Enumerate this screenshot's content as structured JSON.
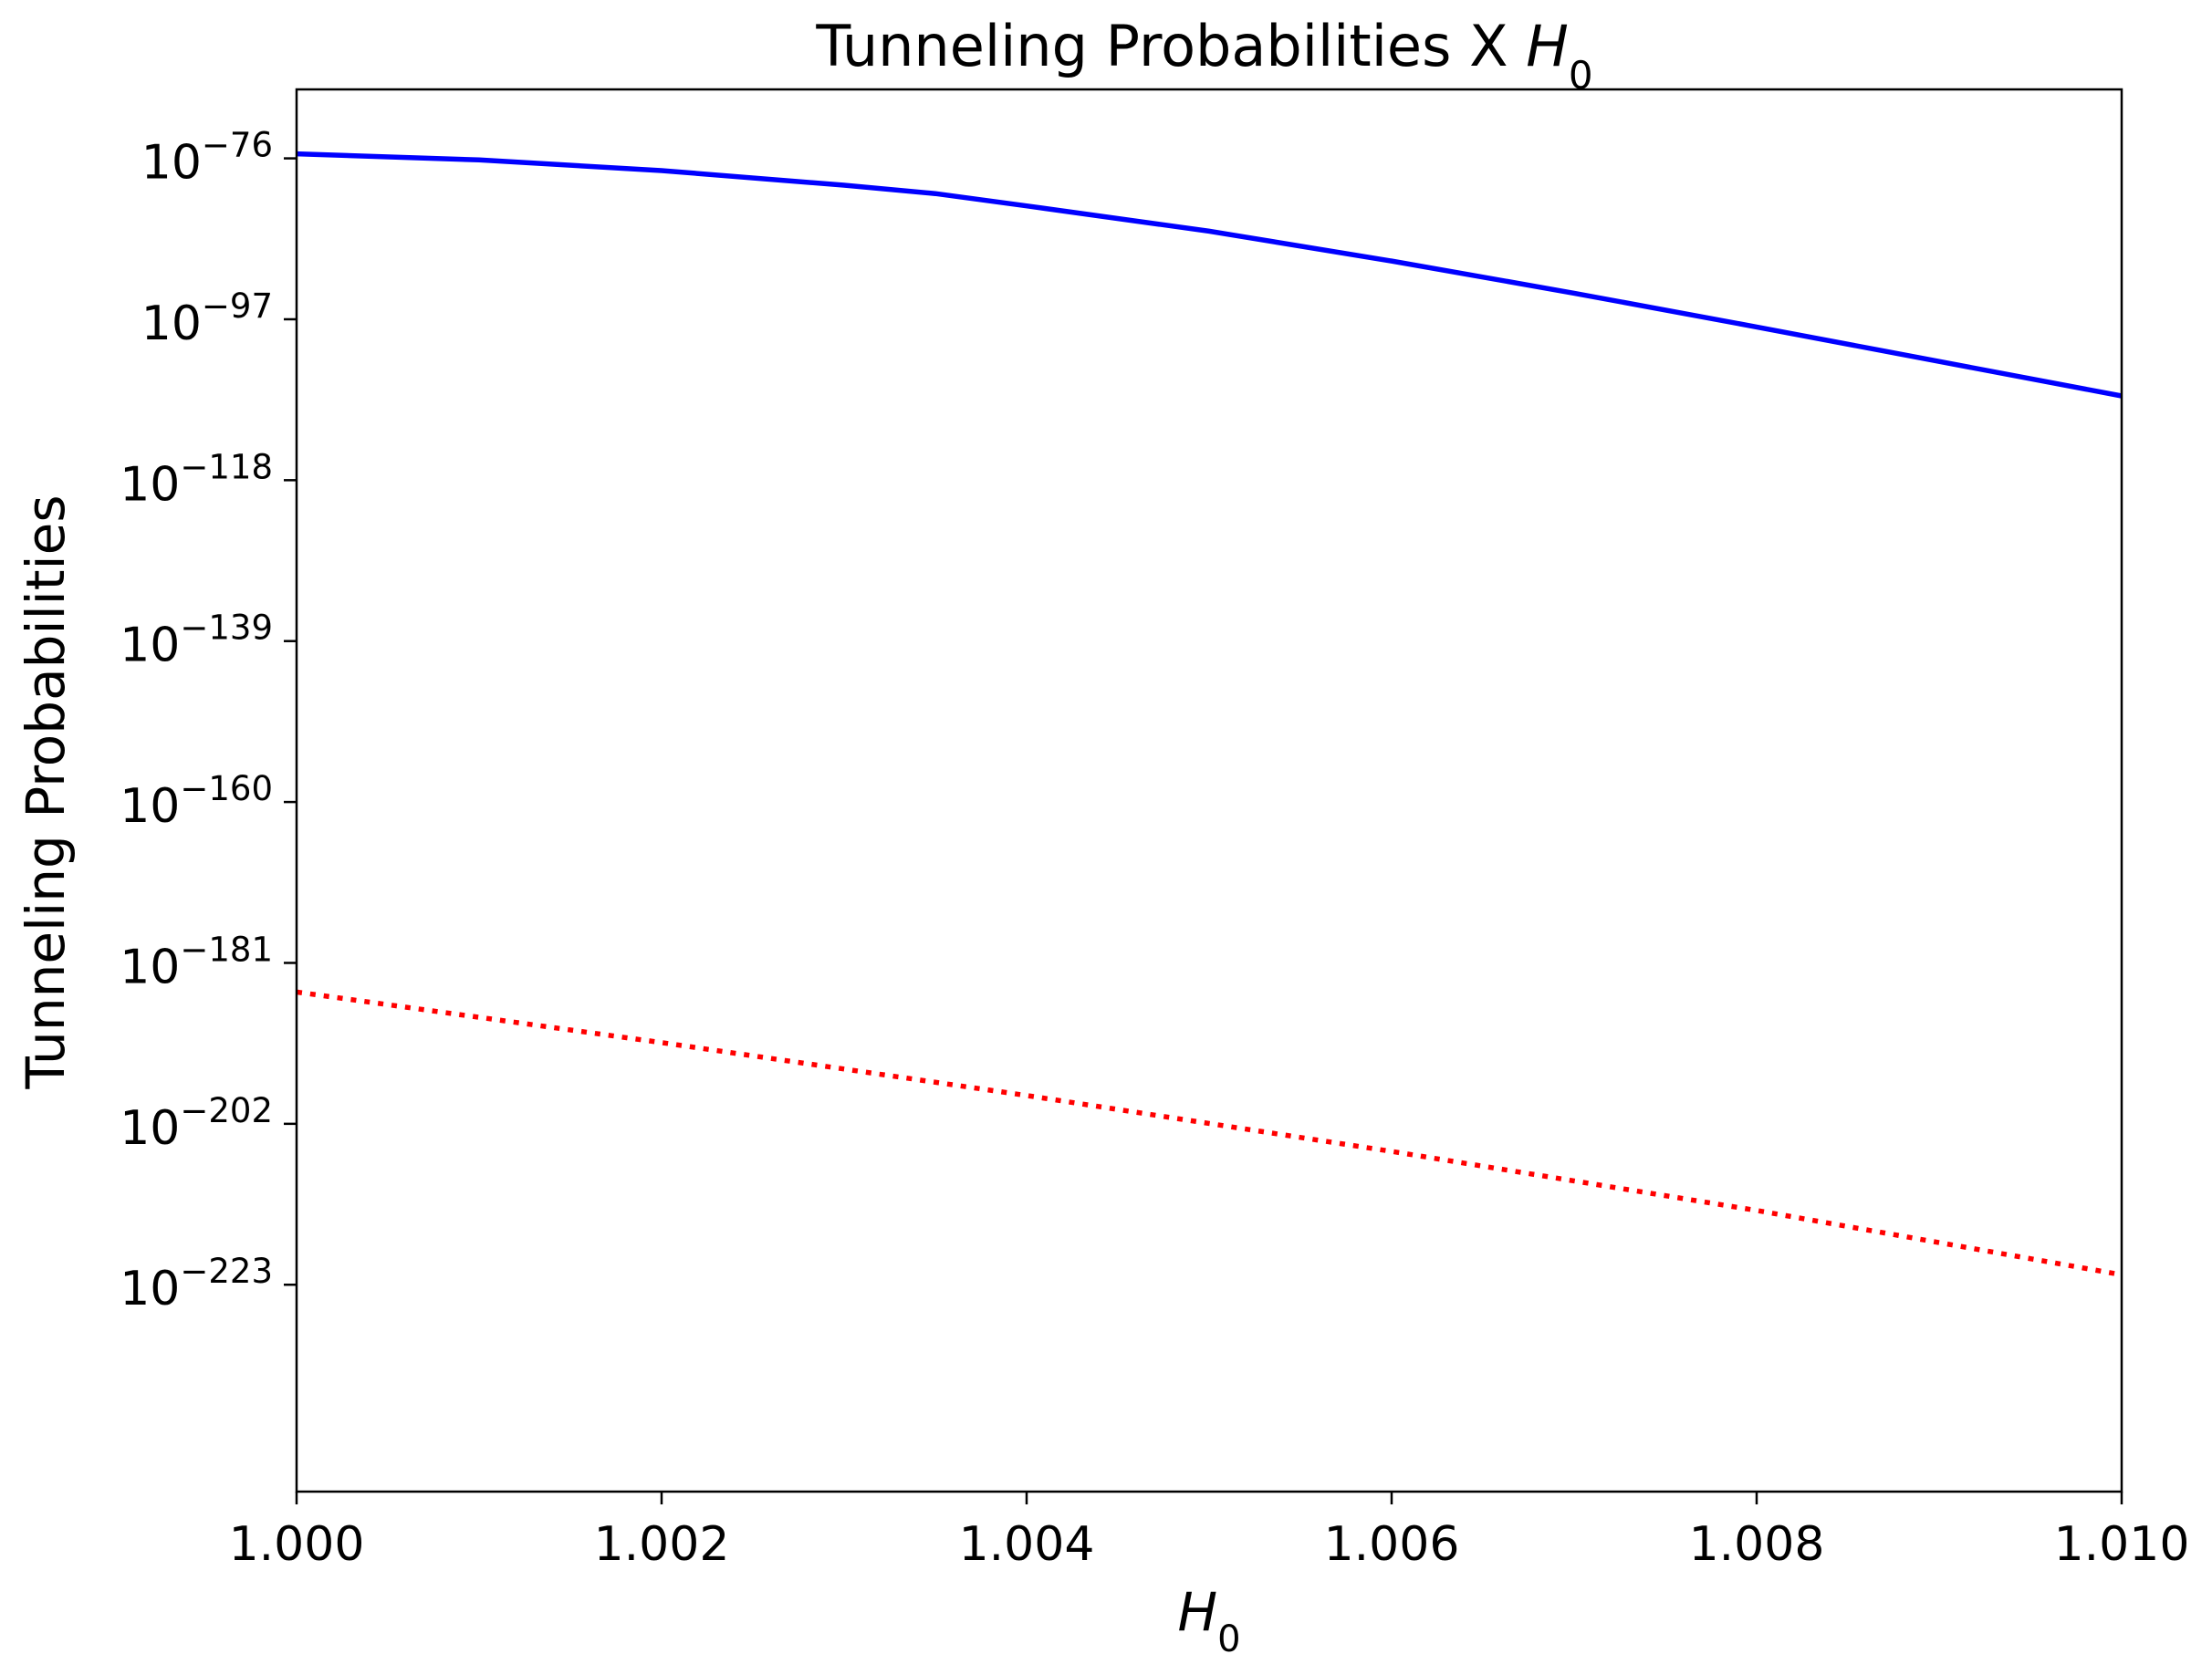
{
  "chart_data": {
    "type": "line",
    "title": {
      "text": "Tunneling Probabilities X ",
      "symbol": "H",
      "subscript": "0"
    },
    "xlabel": {
      "symbol": "H",
      "subscript": "0"
    },
    "ylabel": "Tunneling Probabilities",
    "xlim": [
      1.0,
      1.01
    ],
    "ylim_exponent": [
      -250,
      -67
    ],
    "yscale": "log",
    "grid": false,
    "x_ticks": [
      "1.000",
      "1.002",
      "1.004",
      "1.006",
      "1.008",
      "1.010"
    ],
    "y_ticks": [
      {
        "base": "10",
        "exp": "−76",
        "value": -76
      },
      {
        "base": "10",
        "exp": "−97",
        "value": -97
      },
      {
        "base": "10",
        "exp": "−118",
        "value": -118
      },
      {
        "base": "10",
        "exp": "−139",
        "value": -139
      },
      {
        "base": "10",
        "exp": "−160",
        "value": -160
      },
      {
        "base": "10",
        "exp": "−181",
        "value": -181
      },
      {
        "base": "10",
        "exp": "−202",
        "value": -202
      },
      {
        "base": "10",
        "exp": "−223",
        "value": -223
      }
    ],
    "series": [
      {
        "style": "solid",
        "color": "#0000ff",
        "x": [
          1.0,
          1.001,
          1.002,
          1.003,
          1.0035,
          1.004,
          1.005,
          1.006,
          1.007,
          1.008,
          1.009,
          1.01
        ],
        "log10_y": [
          -75.4,
          -76.2,
          -77.6,
          -79.5,
          -80.6,
          -82.2,
          -85.5,
          -89.4,
          -93.6,
          -98.0,
          -102.5,
          -107.0
        ]
      },
      {
        "style": "dotted",
        "color": "#ff0000",
        "x": [
          1.0,
          1.002,
          1.004,
          1.006,
          1.008,
          1.01
        ],
        "log10_y": [
          -184.8,
          -191.4,
          -198.3,
          -205.6,
          -213.3,
          -221.7
        ]
      }
    ]
  }
}
